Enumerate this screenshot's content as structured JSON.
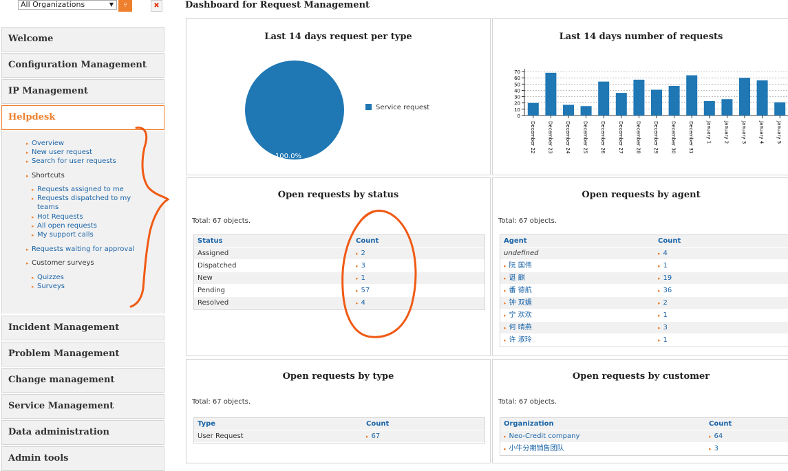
{
  "topbar": {
    "org_select": "All Organizations"
  },
  "menu": [
    {
      "label": "Welcome"
    },
    {
      "label": "Configuration Management"
    },
    {
      "label": "IP Management"
    },
    {
      "label": "Helpdesk"
    },
    {
      "label": "Incident Management"
    },
    {
      "label": "Problem Management"
    },
    {
      "label": "Change management"
    },
    {
      "label": "Service Management"
    },
    {
      "label": "Data administration"
    },
    {
      "label": "Admin tools"
    }
  ],
  "helpdesk": {
    "overview": "Overview",
    "new_request": "New user request",
    "search": "Search for user requests",
    "shortcuts": "Shortcuts",
    "assigned": "Requests assigned to me",
    "dispatched_1": "Requests dispatched to my",
    "dispatched_2": "teams",
    "hot": "Hot Requests",
    "all_open": "All open requests",
    "support_calls": "My support calls",
    "waiting": "Requests waiting for approval",
    "surveys_group": "Customer surveys",
    "quizzes": "Quizzes",
    "surveys": "Surveys"
  },
  "dashboard": {
    "title": "Dashboard for Request Management"
  },
  "pie_panel": {
    "title": "Last 14 days request per type",
    "legend": "Service request",
    "slice_label": "100.0%",
    "slice_color": "#1f77b4"
  },
  "bar_panel": {
    "title": "Last 14 days number of requests"
  },
  "chart_data": [
    {
      "type": "pie",
      "title": "Last 14 days request per type",
      "slices": [
        {
          "label": "Service request",
          "value": 100.0
        }
      ],
      "legend": "right",
      "color": "#1f77b4"
    },
    {
      "type": "bar",
      "title": "Last 14 days number of requests",
      "categories": [
        "December 22",
        "December 23",
        "December 24",
        "December 25",
        "December 26",
        "December 27",
        "December 28",
        "December 29",
        "December 30",
        "December 31",
        "January 1",
        "January 2",
        "January 3",
        "January 4",
        "January 5"
      ],
      "values": [
        20,
        68,
        17,
        15,
        54,
        36,
        57,
        41,
        47,
        64,
        23,
        26,
        60,
        56,
        21
      ],
      "ylim": [
        0,
        70
      ],
      "yticks": [
        0,
        10,
        20,
        30,
        40,
        50,
        60,
        70
      ],
      "grid": true,
      "color": "#1f77b4"
    }
  ],
  "status_panel": {
    "title": "Open requests by status",
    "total": "Total: 67 objects.",
    "headers": [
      "Status",
      "Count"
    ],
    "rows": [
      [
        "Assigned",
        "2"
      ],
      [
        "Dispatched",
        "3"
      ],
      [
        "New",
        "1"
      ],
      [
        "Pending",
        "57"
      ],
      [
        "Resolved",
        "4"
      ]
    ]
  },
  "agent_panel": {
    "title": "Open requests by agent",
    "total": "Total: 67 objects.",
    "headers": [
      "Agent",
      "Count"
    ],
    "rows": [
      [
        "undefined",
        "4"
      ],
      [
        "阮 国伟",
        "1"
      ],
      [
        "谌 麒",
        "19"
      ],
      [
        "番 德航",
        "36"
      ],
      [
        "钟 双媚",
        "2"
      ],
      [
        "宁 欢欢",
        "1"
      ],
      [
        "何 晴燕",
        "3"
      ],
      [
        "许 淑玲",
        "1"
      ]
    ]
  },
  "type_panel": {
    "title": "Open requests by type",
    "total": "Total: 67 objects.",
    "headers": [
      "Type",
      "Count"
    ],
    "rows": [
      [
        "User Request",
        "67"
      ]
    ]
  },
  "customer_panel": {
    "title": "Open requests by customer",
    "total": "Total: 67 objects.",
    "headers": [
      "Organization",
      "Count"
    ],
    "rows": [
      [
        "Neo-Credit company",
        "64"
      ],
      [
        "小牛分期销售团队",
        "3"
      ]
    ]
  },
  "colors": {
    "accent": "#ee7f2d",
    "link": "#1a64a8",
    "annotation": "#f05a14"
  }
}
